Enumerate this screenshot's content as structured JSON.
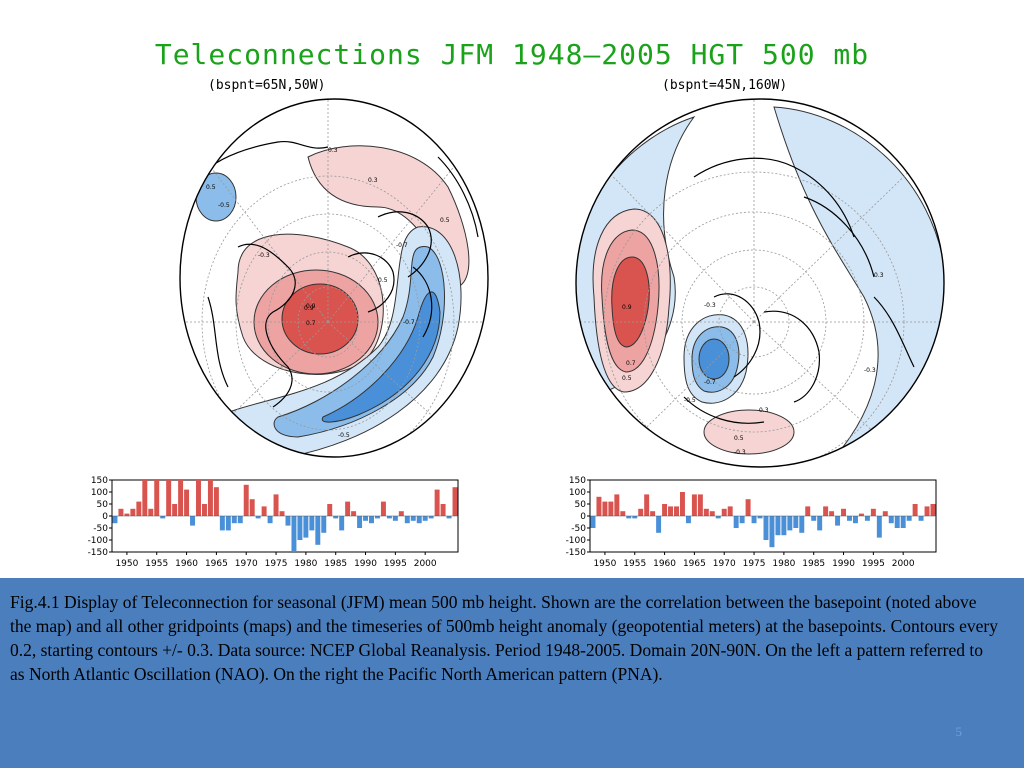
{
  "title": "Teleconnections JFM 1948—2005 HGT 500 mb",
  "panels": [
    {
      "id": "nao",
      "basepoint": "(bspnt=65N,50W)",
      "contour_labels": [
        "0.5",
        "0.7",
        "0.9",
        "0.9",
        "-0.7",
        "-0.7",
        "-0.5",
        "-0.3",
        "0.3",
        "0.3",
        "0.5",
        "-0.5",
        "0.5"
      ]
    },
    {
      "id": "pna",
      "basepoint": "(bspnt=45N,160W)",
      "contour_labels": [
        "0.9",
        "0.7",
        "0.5",
        "-0.3",
        "-0.7",
        "-0.5",
        "0.3",
        "0.5",
        "-0.3",
        "0.3",
        "-0.3"
      ]
    }
  ],
  "chart_data": [
    {
      "type": "bar",
      "series": [
        {
          "values": [
            -30,
            30,
            10,
            30,
            60,
            150,
            30,
            150,
            -10,
            150,
            50,
            150,
            110,
            -40,
            150,
            50,
            150,
            120,
            -60,
            -60,
            -30,
            -30,
            130,
            70,
            -10,
            40,
            -30,
            90,
            20,
            -40,
            -150,
            -100,
            -90,
            -60,
            -120,
            -70,
            50,
            -10,
            -60,
            60,
            20,
            -50,
            -20,
            -30,
            -10,
            60,
            -10,
            -20,
            20,
            -30,
            -20,
            -30,
            -20,
            -10,
            110,
            50,
            -10,
            120
          ]
        }
      ],
      "x": [
        1948,
        1949,
        1950,
        1951,
        1952,
        1953,
        1954,
        1955,
        1956,
        1957,
        1958,
        1959,
        1960,
        1961,
        1962,
        1963,
        1964,
        1965,
        1966,
        1967,
        1968,
        1969,
        1970,
        1971,
        1972,
        1973,
        1974,
        1975,
        1976,
        1977,
        1978,
        1979,
        1980,
        1981,
        1982,
        1983,
        1984,
        1985,
        1986,
        1987,
        1988,
        1989,
        1990,
        1991,
        1992,
        1993,
        1994,
        1995,
        1996,
        1997,
        1998,
        1999,
        2000,
        2001,
        2002,
        2003,
        2004,
        2005
      ],
      "xticks": [
        "1950",
        "1955",
        "1960",
        "1965",
        "1970",
        "1975",
        "1980",
        "1985",
        "1990",
        "1995",
        "2000"
      ],
      "yticks": [
        "150",
        "100",
        "50",
        "0",
        "-50",
        "-100",
        "-150"
      ],
      "ylim": [
        -150,
        150
      ]
    },
    {
      "type": "bar",
      "series": [
        {
          "values": [
            -50,
            80,
            60,
            60,
            90,
            20,
            -10,
            -10,
            30,
            90,
            20,
            -70,
            50,
            40,
            40,
            100,
            -30,
            90,
            90,
            30,
            20,
            -10,
            30,
            40,
            -50,
            -30,
            70,
            -30,
            -10,
            -100,
            -130,
            -80,
            -80,
            -60,
            -50,
            -70,
            40,
            -20,
            -60,
            40,
            20,
            -40,
            30,
            -20,
            -30,
            10,
            -20,
            30,
            -90,
            20,
            -30,
            -50,
            -50,
            -20,
            50,
            -20,
            40,
            50
          ]
        }
      ],
      "x": [
        1948,
        1949,
        1950,
        1951,
        1952,
        1953,
        1954,
        1955,
        1956,
        1957,
        1958,
        1959,
        1960,
        1961,
        1962,
        1963,
        1964,
        1965,
        1966,
        1967,
        1968,
        1969,
        1970,
        1971,
        1972,
        1973,
        1974,
        1975,
        1976,
        1977,
        1978,
        1979,
        1980,
        1981,
        1982,
        1983,
        1984,
        1985,
        1986,
        1987,
        1988,
        1989,
        1990,
        1991,
        1992,
        1993,
        1994,
        1995,
        1996,
        1997,
        1998,
        1999,
        2000,
        2001,
        2002,
        2003,
        2004,
        2005
      ],
      "xticks": [
        "1950",
        "1955",
        "1960",
        "1965",
        "1970",
        "1975",
        "1980",
        "1985",
        "1990",
        "1995",
        "2000"
      ],
      "yticks": [
        "150",
        "100",
        "50",
        "0",
        "-50",
        "-100",
        "-150"
      ],
      "ylim": [
        -150,
        150
      ]
    }
  ],
  "caption": "Fig.4.1 Display of  Teleconnection for seasonal (JFM) mean 500 mb height. Shown are the correlation between the basepoint (noted above the map) and all other gridpoints (maps) and the timeseries of 500mb height anomaly (geopotential meters) at the basepoints. Contours every 0.2, starting contours +/- 0.3. Data source: NCEP Global Reanalysis. Period 1948-2005. Domain 20N-90N. On the left a pattern referred to as North Atlantic Oscillation (NAO). On the right the Pacific North American pattern (PNA).",
  "page_number": "5",
  "colors": {
    "title": "#1aa31a",
    "positive": "#d9534f",
    "negative": "#4a90d9",
    "caption_bg": "#4a7ebd"
  }
}
